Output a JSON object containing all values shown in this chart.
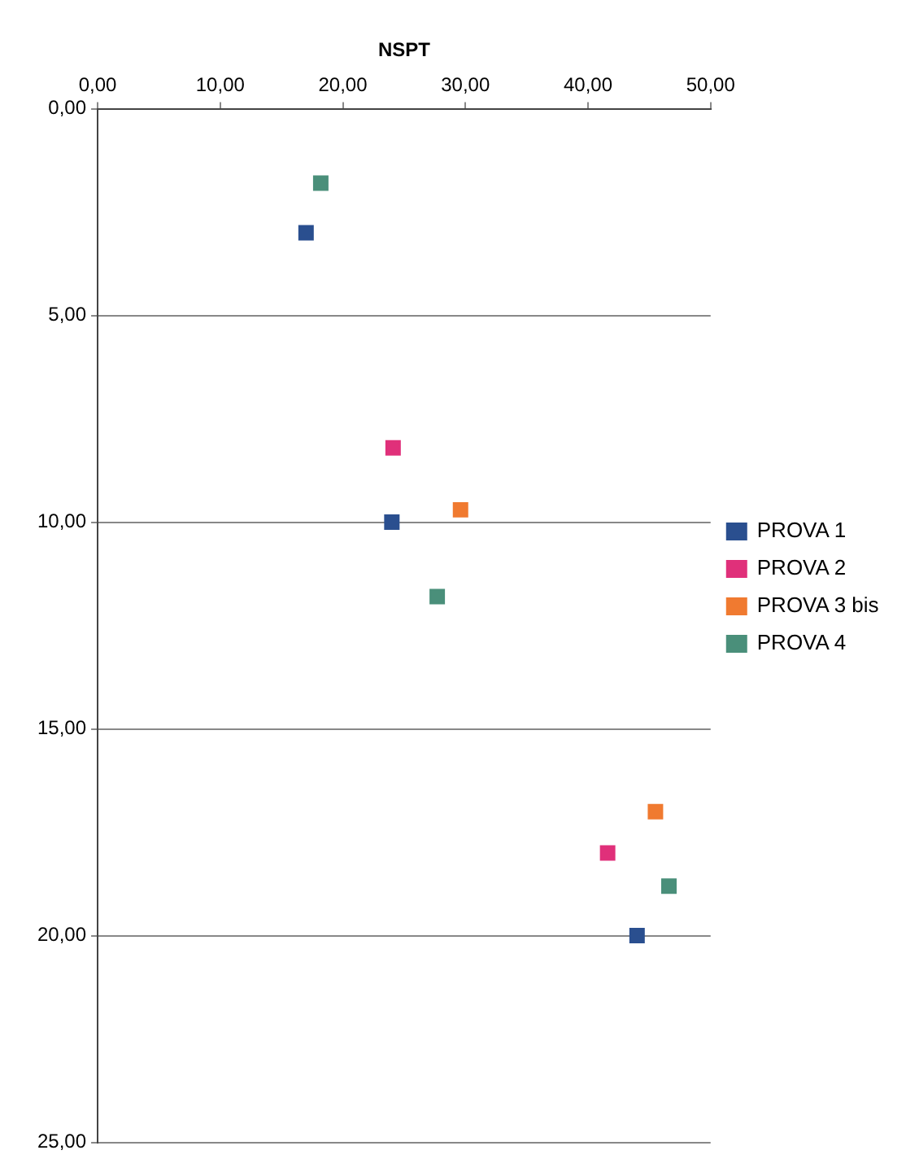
{
  "chart_data": {
    "type": "scatter",
    "xlabel": "NSPT",
    "xlim": [
      0,
      50
    ],
    "xticks": [
      {
        "value": 0,
        "label": "0,00"
      },
      {
        "value": 10,
        "label": "10,00"
      },
      {
        "value": 20,
        "label": "20,00"
      },
      {
        "value": 30,
        "label": "30,00"
      },
      {
        "value": 40,
        "label": "40,00"
      },
      {
        "value": 50,
        "label": "50,00"
      }
    ],
    "ylim": [
      25,
      0
    ],
    "yticks": [
      {
        "value": 0,
        "label": "0,00"
      },
      {
        "value": 5,
        "label": "5,00"
      },
      {
        "value": 10,
        "label": "10,00"
      },
      {
        "value": 15,
        "label": "15,00"
      },
      {
        "value": 20,
        "label": "20,00"
      },
      {
        "value": 25,
        "label": "25,00"
      }
    ],
    "grid": "y",
    "legend": "right",
    "marker": "square",
    "series": [
      {
        "name": "PROVA 1",
        "color": "#2a4f8f",
        "x": [
          17,
          24,
          44
        ],
        "values": [
          3,
          10,
          20
        ]
      },
      {
        "name": "PROVA 2",
        "color": "#e0307a",
        "x": [
          24.1,
          41.6
        ],
        "values": [
          8.2,
          18
        ]
      },
      {
        "name": "PROVA 3 bis",
        "color": "#f07a30",
        "x": [
          29.6,
          45.5
        ],
        "values": [
          9.7,
          17
        ]
      },
      {
        "name": "PROVA 4",
        "color": "#4a8f7a",
        "x": [
          18.2,
          27.7,
          46.6
        ],
        "values": [
          1.8,
          11.8,
          18.8
        ]
      }
    ]
  }
}
